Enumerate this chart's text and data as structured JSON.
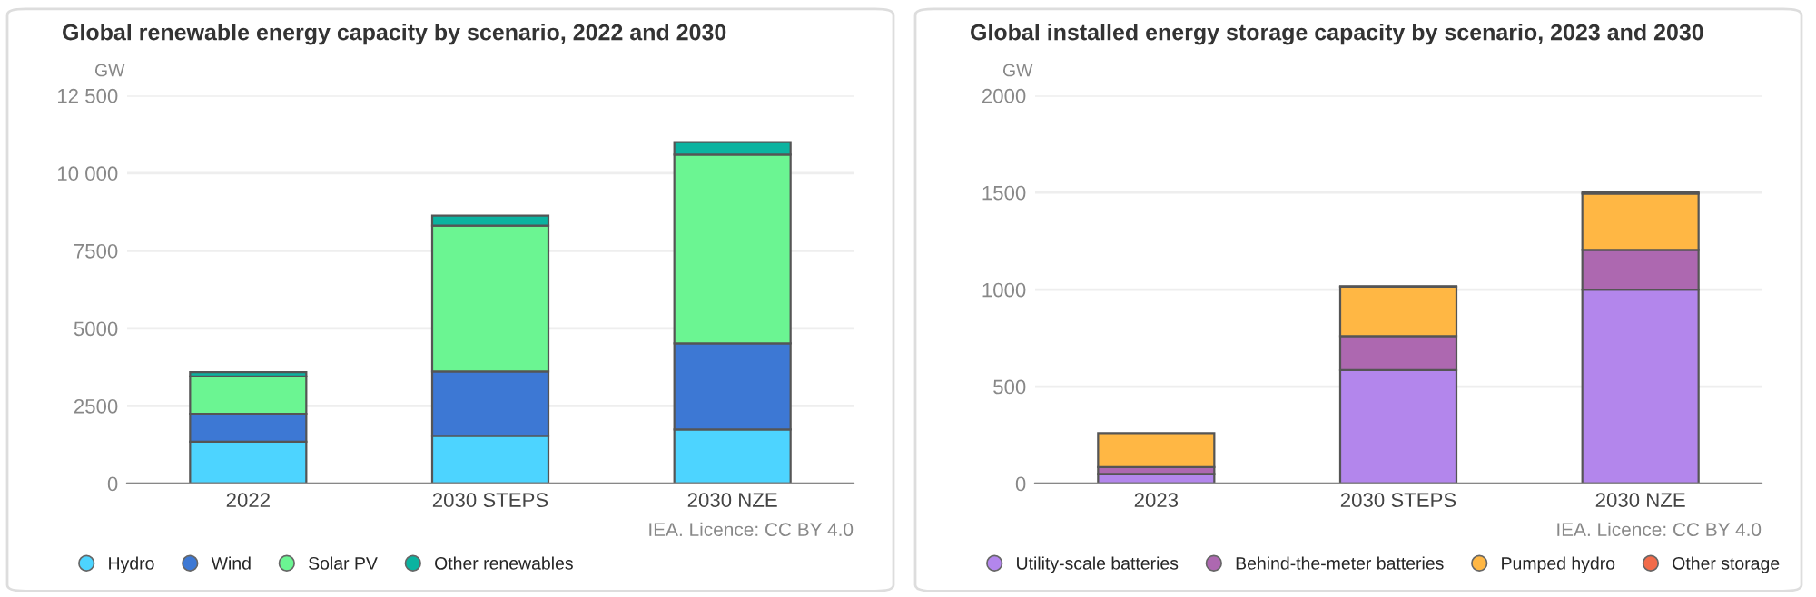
{
  "chart_data": [
    {
      "type": "bar",
      "title": "Global renewable energy capacity by scenario, 2022 and 2030",
      "ylabel": "GW",
      "stacked": true,
      "categories": [
        "2022",
        "2030 STEPS",
        "2030 NZE"
      ],
      "series": [
        {
          "name": "Hydro",
          "color": "#4dd4ff",
          "values": [
            1350,
            1540,
            1740
          ]
        },
        {
          "name": "Wind",
          "color": "#3d78d4",
          "values": [
            900,
            2070,
            2780
          ]
        },
        {
          "name": "Solar PV",
          "color": "#6bf592",
          "values": [
            1200,
            4700,
            6080
          ]
        },
        {
          "name": "Other renewables",
          "color": "#0bb3a0",
          "values": [
            140,
            320,
            400
          ]
        }
      ],
      "ylim": [
        0,
        12500
      ],
      "yticks": [
        0,
        2500,
        5000,
        7500,
        {
          "value": 10000,
          "label": "10 000"
        },
        {
          "value": 12500,
          "label": "12 500"
        }
      ],
      "grid": "y",
      "legend": "bottom",
      "annotations": [
        "IEA. Licence: CC BY 4.0"
      ]
    },
    {
      "type": "bar",
      "title": "Global installed energy storage capacity by scenario, 2023 and 2030",
      "ylabel": "GW",
      "stacked": true,
      "categories": [
        "2023",
        "2030 STEPS",
        "2030 NZE"
      ],
      "series": [
        {
          "name": "Utility-scale batteries",
          "color": "#b386ec",
          "values": [
            50,
            585,
            1000
          ]
        },
        {
          "name": "Behind-the-meter batteries",
          "color": "#ad68b0",
          "values": [
            35,
            175,
            205
          ]
        },
        {
          "name": "Pumped hydro",
          "color": "#ffb744",
          "values": [
            175,
            255,
            290
          ]
        },
        {
          "name": "Other storage",
          "color": "#f26b4a",
          "values": [
            null,
            3,
            10
          ]
        }
      ],
      "ylim": [
        0,
        2000
      ],
      "yticks": [
        0,
        500,
        1000,
        1500,
        2000
      ],
      "grid": "y",
      "legend": "bottom",
      "annotations": [
        "IEA. Licence: CC BY 4.0"
      ]
    }
  ]
}
